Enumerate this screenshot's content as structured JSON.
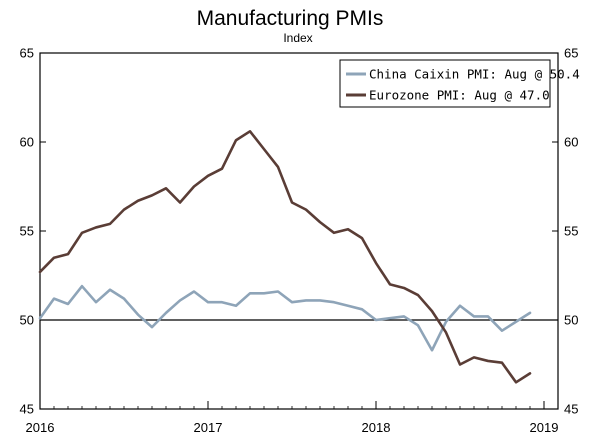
{
  "chart_data": {
    "type": "line",
    "title": "Manufacturing PMIs",
    "subtitle": "Index",
    "xlabel": "",
    "ylabel": "",
    "ylim": [
      45,
      65
    ],
    "y_ticks": [
      45,
      50,
      55,
      60,
      65
    ],
    "x_tick_labels": [
      "2016",
      "2017",
      "2018",
      "2019"
    ],
    "x_tick_dates": [
      "2016-01",
      "2017-01",
      "2018-01",
      "2019-01"
    ],
    "xlim": [
      "2016-01",
      "2019-02"
    ],
    "reference_line": 50,
    "grid": false,
    "legend_position": "top-right",
    "x": [
      "2016-01",
      "2016-02",
      "2016-03",
      "2016-04",
      "2016-05",
      "2016-06",
      "2016-07",
      "2016-08",
      "2016-09",
      "2016-10",
      "2016-11",
      "2016-12",
      "2017-01",
      "2017-02",
      "2017-03",
      "2017-04",
      "2017-05",
      "2017-06",
      "2017-07",
      "2017-08",
      "2017-09",
      "2017-10",
      "2017-11",
      "2017-12",
      "2018-01",
      "2018-02",
      "2018-03",
      "2018-04",
      "2018-05",
      "2018-06",
      "2018-07",
      "2018-08",
      "2018-09",
      "2018-10",
      "2018-11",
      "2018-12",
      "2019-01"
    ],
    "series": [
      {
        "name": "China Caixin PMI: Aug @ 50.4",
        "color": "#8ea4b8",
        "values": [
          50.1,
          51.2,
          50.9,
          51.9,
          51.0,
          51.7,
          51.2,
          50.3,
          49.6,
          50.4,
          51.1,
          51.6,
          51.0,
          51.0,
          50.8,
          51.5,
          51.5,
          51.6,
          51.0,
          51.1,
          51.1,
          51.0,
          50.8,
          50.6,
          50.0,
          50.1,
          50.2,
          49.7,
          48.3,
          49.9,
          50.8,
          50.2,
          50.2,
          49.4,
          49.9,
          50.4,
          null
        ]
      },
      {
        "name": "Eurozone PMI: Aug @ 47.0",
        "color": "#5a3d36",
        "values": [
          52.7,
          53.5,
          53.7,
          54.9,
          55.2,
          55.4,
          56.2,
          56.7,
          57.0,
          57.4,
          56.6,
          57.5,
          58.1,
          58.5,
          60.1,
          60.6,
          59.6,
          58.6,
          56.6,
          56.2,
          55.5,
          54.9,
          55.1,
          54.6,
          53.2,
          52.0,
          51.8,
          51.4,
          50.5,
          49.3,
          47.5,
          47.9,
          47.7,
          47.6,
          46.5,
          47.0,
          null
        ]
      }
    ]
  }
}
